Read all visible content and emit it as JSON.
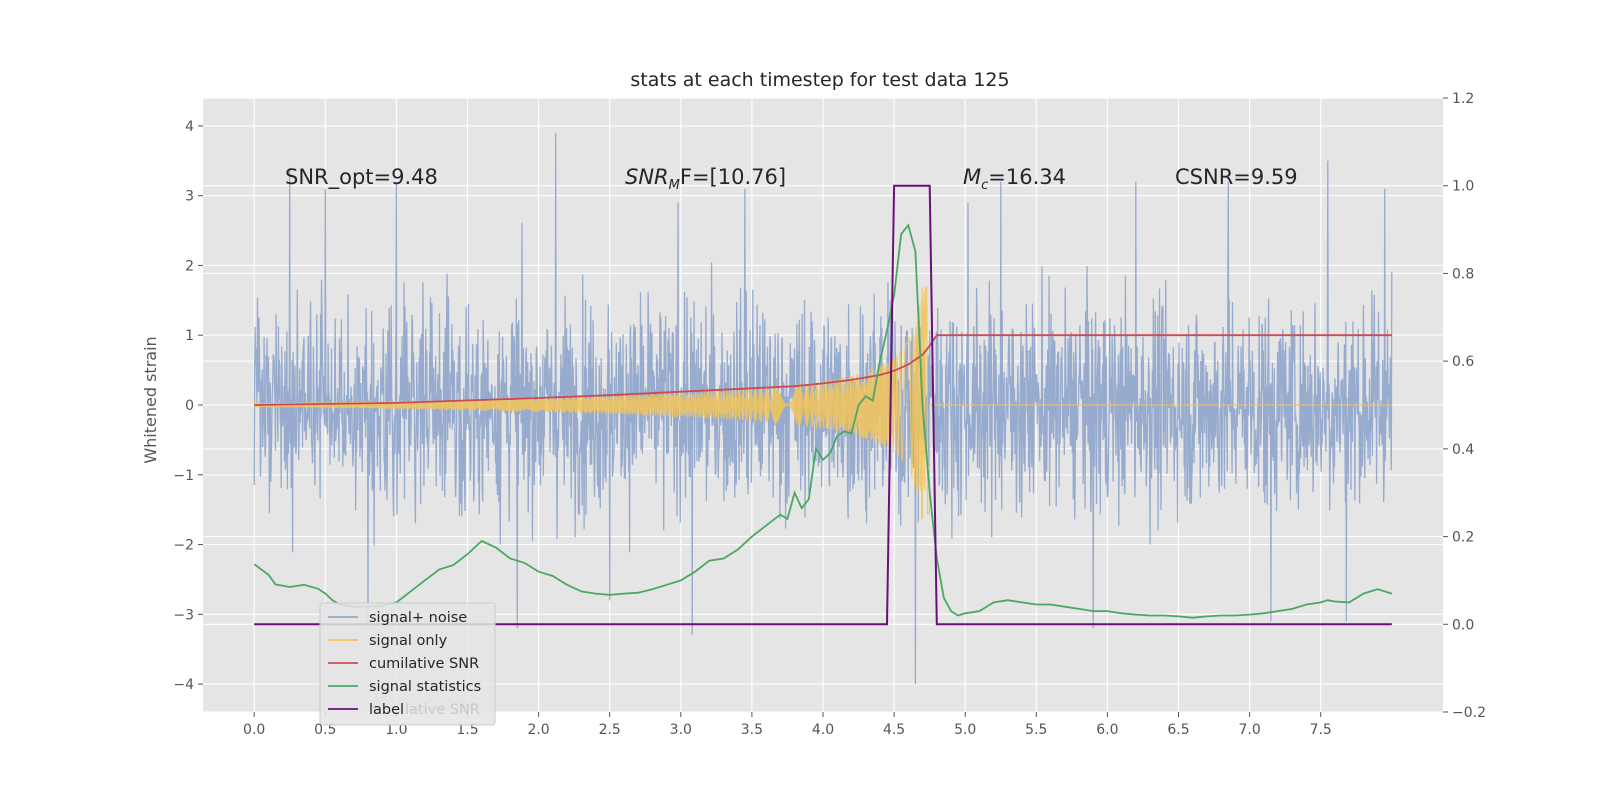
{
  "chart_data": {
    "type": "line",
    "title": "stats at each timestep for test data 125",
    "ylabel": "Whitened strain",
    "xlim": [
      -0.36,
      8.36
    ],
    "ylim": [
      -4.4,
      4.4
    ],
    "y2lim": [
      -0.2,
      1.2
    ],
    "x_ticks": [
      0.0,
      0.5,
      1.0,
      1.5,
      2.0,
      2.5,
      3.0,
      3.5,
      4.0,
      4.5,
      5.0,
      5.5,
      6.0,
      6.5,
      7.0,
      7.5
    ],
    "x_tick_labels": [
      "0.0",
      "0.5",
      "1.0",
      "1.5",
      "2.0",
      "2.5",
      "3.0",
      "3.5",
      "4.0",
      "4.5",
      "5.0",
      "5.5",
      "6.0",
      "6.5",
      "7.0",
      "7.5"
    ],
    "y_ticks": [
      -4,
      -3,
      -2,
      -1,
      0,
      1,
      2,
      3,
      4
    ],
    "y_tick_labels": [
      "−4",
      "−3",
      "−2",
      "−1",
      "0",
      "1",
      "2",
      "3",
      "4"
    ],
    "y2_ticks": [
      -0.2,
      0.0,
      0.2,
      0.4,
      0.6,
      0.8,
      1.0,
      1.2
    ],
    "y2_tick_labels": [
      "−0.2",
      "0.0",
      "0.2",
      "0.4",
      "0.6",
      "0.8",
      "1.0",
      "1.2"
    ],
    "grid": true,
    "legend_placement": "lower-left",
    "annotations": {
      "snr_opt": "SNR_opt=9.48",
      "snr_mf_main": "SNR",
      "snr_mf_sub": "M",
      "snr_mf_rest": "F=[10.76]",
      "mc_main": "M",
      "mc_sub": "c",
      "mc_rest": "=16.34",
      "csnr": "CSNR=9.59"
    },
    "series": [
      {
        "name": "signal+ noise",
        "color": "#92a8cc",
        "axis": "left",
        "style": "noise",
        "x_range": [
          0.0,
          8.0
        ],
        "amplitude_typical": 1.6,
        "spikes": [
          [
            0.25,
            3.4
          ],
          [
            0.5,
            3.1
          ],
          [
            1.0,
            3.2
          ],
          [
            2.12,
            3.9
          ],
          [
            2.98,
            2.9
          ],
          [
            3.45,
            3.1
          ],
          [
            5.02,
            2.9
          ],
          [
            5.25,
            3.2
          ],
          [
            6.2,
            3.2
          ],
          [
            6.85,
            3.2
          ],
          [
            7.55,
            3.5
          ],
          [
            7.95,
            3.1
          ],
          [
            4.65,
            -4.0
          ],
          [
            3.08,
            -3.3
          ],
          [
            0.8,
            -3.2
          ],
          [
            1.85,
            -3.2
          ],
          [
            5.9,
            -3.2
          ],
          [
            7.68,
            -3.1
          ],
          [
            2.5,
            -2.8
          ],
          [
            7.15,
            -3.1
          ]
        ]
      },
      {
        "name": "signal only",
        "color": "#f2c45a",
        "axis": "left",
        "style": "chirp",
        "x_range": [
          0.0,
          8.0
        ],
        "peak_time": 4.75,
        "peak_amplitude": 1.7
      },
      {
        "name": "cumilative SNR",
        "color": "#cc4a50",
        "axis": "left",
        "x": [
          0.0,
          1.0,
          2.0,
          2.5,
          3.0,
          3.5,
          3.8,
          4.0,
          4.2,
          4.4,
          4.5,
          4.6,
          4.7,
          4.75,
          4.8,
          5.0,
          6.0,
          7.0,
          8.0
        ],
        "values": [
          0.0,
          0.03,
          0.1,
          0.14,
          0.19,
          0.24,
          0.27,
          0.31,
          0.36,
          0.43,
          0.49,
          0.58,
          0.72,
          0.85,
          1.0,
          1.0,
          1.0,
          1.0,
          1.0
        ]
      },
      {
        "name": "signal statistics",
        "color": "#4aa861",
        "axis": "right",
        "x": [
          0.0,
          0.1,
          0.15,
          0.25,
          0.35,
          0.45,
          0.5,
          0.55,
          0.6,
          0.7,
          0.8,
          0.9,
          1.0,
          1.1,
          1.2,
          1.3,
          1.4,
          1.5,
          1.6,
          1.7,
          1.8,
          1.9,
          2.0,
          2.1,
          2.2,
          2.3,
          2.4,
          2.5,
          2.6,
          2.7,
          2.8,
          2.9,
          3.0,
          3.1,
          3.2,
          3.3,
          3.4,
          3.5,
          3.6,
          3.7,
          3.75,
          3.8,
          3.85,
          3.9,
          3.95,
          4.0,
          4.05,
          4.1,
          4.15,
          4.2,
          4.25,
          4.3,
          4.35,
          4.4,
          4.45,
          4.5,
          4.55,
          4.6,
          4.65,
          4.7,
          4.75,
          4.8,
          4.85,
          4.9,
          4.95,
          5.0,
          5.1,
          5.2,
          5.3,
          5.4,
          5.5,
          5.6,
          5.7,
          5.8,
          5.9,
          6.0,
          6.1,
          6.2,
          6.3,
          6.4,
          6.5,
          6.6,
          6.7,
          6.8,
          6.9,
          7.0,
          7.1,
          7.2,
          7.3,
          7.4,
          7.5,
          7.55,
          7.6,
          7.7,
          7.75,
          7.8,
          7.9,
          8.0
        ],
        "values": [
          0.137,
          0.113,
          0.091,
          0.085,
          0.09,
          0.081,
          0.07,
          0.055,
          0.045,
          0.04,
          0.04,
          0.042,
          0.05,
          0.075,
          0.1,
          0.125,
          0.135,
          0.16,
          0.19,
          0.175,
          0.15,
          0.14,
          0.12,
          0.11,
          0.09,
          0.075,
          0.07,
          0.067,
          0.07,
          0.072,
          0.08,
          0.09,
          0.1,
          0.12,
          0.145,
          0.15,
          0.17,
          0.2,
          0.225,
          0.25,
          0.24,
          0.3,
          0.265,
          0.285,
          0.4,
          0.375,
          0.39,
          0.43,
          0.44,
          0.435,
          0.5,
          0.52,
          0.51,
          0.6,
          0.67,
          0.75,
          0.89,
          0.91,
          0.85,
          0.5,
          0.3,
          0.15,
          0.06,
          0.03,
          0.02,
          0.025,
          0.03,
          0.05,
          0.055,
          0.05,
          0.045,
          0.045,
          0.04,
          0.035,
          0.03,
          0.03,
          0.025,
          0.022,
          0.02,
          0.02,
          0.018,
          0.015,
          0.018,
          0.02,
          0.02,
          0.022,
          0.025,
          0.03,
          0.035,
          0.045,
          0.05,
          0.055,
          0.052,
          0.05,
          0.06,
          0.07,
          0.08,
          0.07
        ]
      },
      {
        "name": "label",
        "color": "#6b0f7a",
        "axis": "right",
        "x": [
          0.0,
          4.45,
          4.5,
          4.75,
          4.8,
          8.0
        ],
        "values": [
          0.0,
          0.0,
          1.0,
          1.0,
          0.0,
          0.0
        ]
      }
    ],
    "legend_ghost_text": "lative SNR"
  }
}
